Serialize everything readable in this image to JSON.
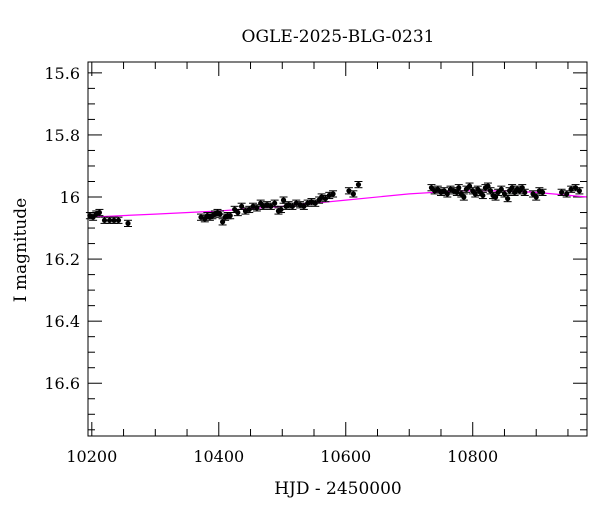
{
  "chart_data": {
    "type": "scatter",
    "title": "OGLE-2025-BLG-0231",
    "xlabel": "HJD - 2450000",
    "ylabel": "I magnitude",
    "xlim": [
      10194,
      10980
    ],
    "ylim": [
      16.77,
      15.565
    ],
    "y_inverted": true,
    "x_major_ticks": [
      10200,
      10400,
      10600,
      10800
    ],
    "x_tick_labels": [
      "10200",
      "10400",
      "10600",
      "10800"
    ],
    "y_major_ticks": [
      15.6,
      15.8,
      16,
      16.2,
      16.4,
      16.6
    ],
    "y_tick_labels": [
      "15.6",
      "15.8",
      "16",
      "16.2",
      "16.4",
      "16.6"
    ],
    "grid": false,
    "colors": {
      "points": "#000000",
      "model": "#ff00ff"
    },
    "points": [
      [
        10197,
        16.06
      ],
      [
        10202,
        16.065
      ],
      [
        10207,
        16.055
      ],
      [
        10212,
        16.05
      ],
      [
        10220,
        16.075
      ],
      [
        10228,
        16.075
      ],
      [
        10235,
        16.075
      ],
      [
        10242,
        16.075
      ],
      [
        10257,
        16.085
      ],
      [
        10372,
        16.065
      ],
      [
        10378,
        16.07
      ],
      [
        10382,
        16.06
      ],
      [
        10386,
        16.065
      ],
      [
        10390,
        16.06
      ],
      [
        10394,
        16.055
      ],
      [
        10398,
        16.05
      ],
      [
        10402,
        16.055
      ],
      [
        10406,
        16.08
      ],
      [
        10410,
        16.065
      ],
      [
        10414,
        16.06
      ],
      [
        10418,
        16.06
      ],
      [
        10425,
        16.04
      ],
      [
        10430,
        16.05
      ],
      [
        10436,
        16.03
      ],
      [
        10442,
        16.045
      ],
      [
        10448,
        16.04
      ],
      [
        10454,
        16.03
      ],
      [
        10460,
        16.035
      ],
      [
        10466,
        16.02
      ],
      [
        10470,
        16.03
      ],
      [
        10476,
        16.025
      ],
      [
        10482,
        16.03
      ],
      [
        10488,
        16.02
      ],
      [
        10494,
        16.045
      ],
      [
        10498,
        16.04
      ],
      [
        10502,
        16.01
      ],
      [
        10506,
        16.03
      ],
      [
        10510,
        16.025
      ],
      [
        10516,
        16.03
      ],
      [
        10522,
        16.02
      ],
      [
        10528,
        16.025
      ],
      [
        10534,
        16.03
      ],
      [
        10540,
        16.02
      ],
      [
        10546,
        16.015
      ],
      [
        10552,
        16.02
      ],
      [
        10558,
        16.01
      ],
      [
        10562,
        16.0
      ],
      [
        10568,
        16.005
      ],
      [
        10574,
        15.995
      ],
      [
        10580,
        15.99
      ],
      [
        10605,
        15.98
      ],
      [
        10612,
        15.99
      ],
      [
        10620,
        15.96
      ],
      [
        10735,
        15.97
      ],
      [
        10740,
        15.98
      ],
      [
        10745,
        15.975
      ],
      [
        10750,
        15.985
      ],
      [
        10755,
        15.98
      ],
      [
        10760,
        15.99
      ],
      [
        10765,
        15.975
      ],
      [
        10770,
        15.98
      ],
      [
        10775,
        15.985
      ],
      [
        10778,
        15.97
      ],
      [
        10782,
        15.99
      ],
      [
        10786,
        16.0
      ],
      [
        10790,
        15.975
      ],
      [
        10795,
        15.965
      ],
      [
        10800,
        15.98
      ],
      [
        10804,
        15.99
      ],
      [
        10808,
        15.975
      ],
      [
        10812,
        15.985
      ],
      [
        10816,
        15.995
      ],
      [
        10820,
        15.97
      ],
      [
        10824,
        15.965
      ],
      [
        10828,
        15.98
      ],
      [
        10832,
        15.995
      ],
      [
        10836,
        16.0
      ],
      [
        10840,
        15.985
      ],
      [
        10845,
        15.975
      ],
      [
        10850,
        15.99
      ],
      [
        10855,
        16.005
      ],
      [
        10858,
        15.98
      ],
      [
        10862,
        15.97
      ],
      [
        10866,
        15.985
      ],
      [
        10870,
        15.975
      ],
      [
        10874,
        15.98
      ],
      [
        10878,
        15.97
      ],
      [
        10882,
        15.985
      ],
      [
        10895,
        15.99
      ],
      [
        10900,
        16.0
      ],
      [
        10905,
        15.98
      ],
      [
        10910,
        15.985
      ],
      [
        10940,
        15.985
      ],
      [
        10948,
        15.99
      ],
      [
        10955,
        15.975
      ],
      [
        10962,
        15.97
      ],
      [
        10968,
        15.98
      ]
    ],
    "error": 0.01,
    "model": [
      [
        10194,
        16.065
      ],
      [
        10300,
        16.055
      ],
      [
        10400,
        16.045
      ],
      [
        10500,
        16.03
      ],
      [
        10600,
        16.01
      ],
      [
        10700,
        15.99
      ],
      [
        10780,
        15.98
      ],
      [
        10850,
        15.98
      ],
      [
        10900,
        15.985
      ],
      [
        10980,
        16.0
      ]
    ]
  }
}
